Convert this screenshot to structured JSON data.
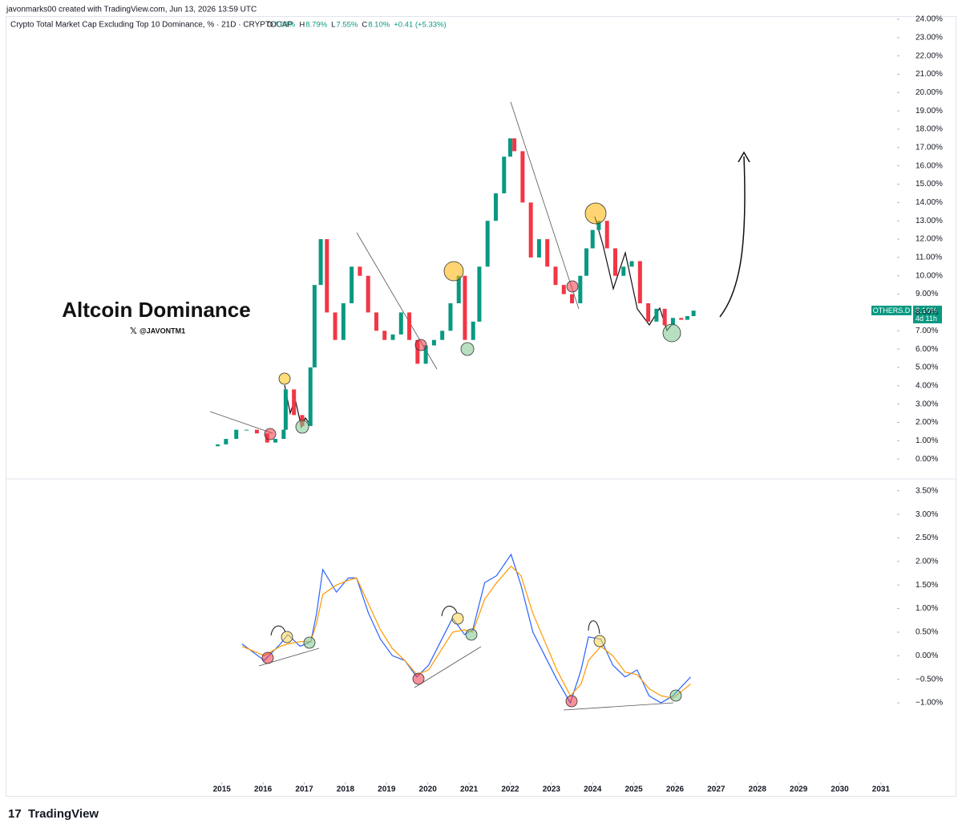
{
  "header": {
    "attribution": "javonmarks00 created with TradingView.com, Jun 13, 2026 13:59 UTC",
    "symbol_title": "Crypto Total Market Cap Excluding Top 10 Dominance, % · 21D · CRYPTOCAP",
    "ohlc": [
      {
        "key": "O",
        "value": "7.68%"
      },
      {
        "key": "H",
        "value": "8.79%"
      },
      {
        "key": "L",
        "value": "7.55%"
      },
      {
        "key": "C",
        "value": "8.10%"
      }
    ],
    "change": "+0.41 (+5.33%)"
  },
  "price_tag": {
    "name": "OTHERS.D",
    "value": "8.10%",
    "countdown": "4d 11h"
  },
  "annotations": {
    "title": "Altcoin Dominance",
    "handle": "@JAVONTM1"
  },
  "footer": {
    "brand": "TradingView"
  },
  "chart_data": [
    {
      "type": "candlestick",
      "color_up": "#089981",
      "color_down": "#f23645",
      "xlim": [
        2009.77,
        2031.41
      ],
      "ylim": [
        -1.0,
        24.7
      ],
      "yticks": [
        {
          "value": 0,
          "label": "0.00%"
        },
        {
          "value": 1,
          "label": "1.00%"
        },
        {
          "value": 2,
          "label": "2.00%"
        },
        {
          "value": 3,
          "label": "3.00%"
        },
        {
          "value": 4,
          "label": "4.00%"
        },
        {
          "value": 5,
          "label": "5.00%"
        },
        {
          "value": 6,
          "label": "6.00%"
        },
        {
          "value": 7,
          "label": "7.00%"
        },
        {
          "value": 8,
          "label": "8.00%"
        },
        {
          "value": 9,
          "label": "9.00%"
        },
        {
          "value": 10,
          "label": "10.00%"
        },
        {
          "value": 11,
          "label": "11.00%"
        },
        {
          "value": 12,
          "label": "12.00%"
        },
        {
          "value": 13,
          "label": "13.00%"
        },
        {
          "value": 14,
          "label": "14.00%"
        },
        {
          "value": 15,
          "label": "15.00%"
        },
        {
          "value": 16,
          "label": "16.00%"
        },
        {
          "value": 17,
          "label": "17.00%"
        },
        {
          "value": 18,
          "label": "18.00%"
        },
        {
          "value": 19,
          "label": "19.00%"
        },
        {
          "value": 20,
          "label": "20.00%"
        },
        {
          "value": 21,
          "label": "21.00%"
        },
        {
          "value": 22,
          "label": "22.00%"
        },
        {
          "value": 23,
          "label": "23.00%"
        },
        {
          "value": 24,
          "label": "24.00%"
        }
      ],
      "x": [
        2014.9,
        2015.1,
        2015.35,
        2015.6,
        2015.85,
        2016.1,
        2016.3,
        2016.5,
        2016.55,
        2016.75,
        2016.95,
        2017.15,
        2017.25,
        2017.4,
        2017.55,
        2017.75,
        2017.95,
        2018.15,
        2018.35,
        2018.55,
        2018.75,
        2018.95,
        2019.15,
        2019.35,
        2019.55,
        2019.75,
        2019.95,
        2020.15,
        2020.35,
        2020.55,
        2020.75,
        2020.9,
        2021.1,
        2021.25,
        2021.45,
        2021.65,
        2021.85,
        2022.0,
        2022.1,
        2022.3,
        2022.5,
        2022.7,
        2022.9,
        2023.1,
        2023.3,
        2023.5,
        2023.7,
        2023.85,
        2024.0,
        2024.15,
        2024.35,
        2024.55,
        2024.75,
        2024.95,
        2025.15,
        2025.35,
        2025.55,
        2025.75,
        2025.95,
        2026.15,
        2026.3,
        2026.45
      ],
      "open": [
        0.7,
        0.8,
        1.1,
        1.6,
        1.6,
        1.4,
        0.9,
        1.1,
        1.6,
        3.8,
        2.4,
        1.8,
        5.0,
        9.5,
        12.0,
        8.0,
        6.5,
        8.5,
        10.5,
        10.0,
        8.0,
        7.0,
        6.5,
        6.8,
        8.0,
        6.5,
        5.2,
        6.2,
        6.5,
        7.0,
        8.5,
        10.0,
        6.5,
        7.5,
        10.5,
        13.0,
        14.5,
        16.5,
        17.5,
        16.8,
        14.0,
        11.0,
        12.0,
        10.5,
        9.5,
        9.0,
        8.5,
        10.0,
        11.5,
        12.5,
        13.0,
        11.5,
        10.0,
        10.5,
        10.8,
        8.5,
        7.5,
        8.2,
        7.3,
        7.7,
        7.6,
        7.8
      ],
      "close": [
        0.8,
        1.1,
        1.6,
        1.6,
        1.4,
        0.9,
        1.1,
        1.6,
        3.8,
        2.4,
        1.8,
        5.0,
        9.5,
        12.0,
        8.0,
        6.5,
        8.5,
        10.5,
        10.0,
        8.0,
        7.0,
        6.5,
        6.8,
        8.0,
        6.5,
        5.2,
        6.2,
        6.5,
        7.0,
        8.5,
        10.0,
        6.5,
        7.5,
        10.5,
        13.0,
        14.5,
        16.5,
        17.5,
        16.8,
        14.0,
        11.0,
        12.0,
        10.5,
        9.5,
        9.0,
        8.5,
        10.0,
        11.5,
        12.5,
        13.0,
        11.5,
        10.0,
        10.5,
        10.8,
        8.5,
        7.5,
        8.2,
        7.3,
        7.7,
        7.6,
        7.8,
        8.1
      ]
    },
    {
      "type": "line",
      "xlim": [
        2009.77,
        2031.41
      ],
      "ylim": [
        -2.6,
        3.7
      ],
      "xticks": [
        2015,
        2016,
        2017,
        2018,
        2019,
        2020,
        2021,
        2022,
        2023,
        2024,
        2025,
        2026,
        2027,
        2028,
        2029,
        2030,
        2031
      ],
      "yticks": [
        {
          "value": -1.0,
          "label": "−1.00%"
        },
        {
          "value": -0.5,
          "label": "−0.50%"
        },
        {
          "value": 0,
          "label": "0.00%"
        },
        {
          "value": 0.5,
          "label": "0.50%"
        },
        {
          "value": 1.0,
          "label": "1.00%"
        },
        {
          "value": 1.5,
          "label": "1.50%"
        },
        {
          "value": 2.0,
          "label": "2.00%"
        },
        {
          "value": 2.5,
          "label": "2.50%"
        },
        {
          "value": 3.0,
          "label": "3.00%"
        },
        {
          "value": 3.5,
          "label": "3.50%"
        }
      ],
      "x": [
        2015.49,
        2016.03,
        2016.42,
        2016.6,
        2016.9,
        2017.16,
        2017.3,
        2017.45,
        2017.78,
        2018.07,
        2018.27,
        2018.56,
        2018.85,
        2019.14,
        2019.44,
        2019.73,
        2020.02,
        2020.31,
        2020.6,
        2020.89,
        2021.09,
        2021.38,
        2021.67,
        2022.02,
        2022.26,
        2022.55,
        2022.84,
        2023.13,
        2023.46,
        2023.72,
        2023.9,
        2024.2,
        2024.49,
        2024.79,
        2025.08,
        2025.37,
        2025.66,
        2025.95,
        2026.38
      ],
      "series": [
        {
          "color": "#2962ff",
          "values": [
            0.25,
            -0.1,
            0.25,
            0.45,
            0.2,
            0.3,
            0.9,
            1.83,
            1.35,
            1.65,
            1.65,
            0.9,
            0.35,
            0.0,
            -0.1,
            -0.45,
            -0.2,
            0.3,
            0.8,
            0.45,
            0.55,
            1.55,
            1.7,
            2.15,
            1.5,
            0.5,
            0.0,
            -0.5,
            -1.0,
            -0.3,
            0.4,
            0.35,
            -0.2,
            -0.45,
            -0.3,
            -0.85,
            -1.0,
            -0.85,
            -0.45
          ]
        },
        {
          "color": "#ff9800",
          "values": [
            0.2,
            0.0,
            0.2,
            0.25,
            0.3,
            0.3,
            0.7,
            1.3,
            1.5,
            1.6,
            1.65,
            1.1,
            0.55,
            0.15,
            -0.1,
            -0.4,
            -0.3,
            0.1,
            0.5,
            0.55,
            0.5,
            1.2,
            1.55,
            1.9,
            1.7,
            0.9,
            0.3,
            -0.3,
            -0.85,
            -0.6,
            -0.1,
            0.2,
            0.0,
            -0.35,
            -0.4,
            -0.7,
            -0.85,
            -0.9,
            -0.6
          ]
        }
      ]
    }
  ]
}
